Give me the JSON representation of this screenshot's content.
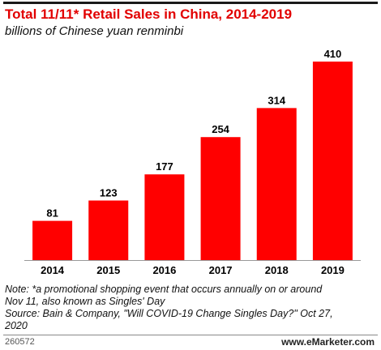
{
  "chart_data": {
    "type": "bar",
    "title": "Total 11/11* Retail Sales in China, 2014-2019",
    "subtitle": "billions of Chinese yuan renminbi",
    "categories": [
      "2014",
      "2015",
      "2016",
      "2017",
      "2018",
      "2019"
    ],
    "values": [
      81,
      123,
      177,
      254,
      314,
      410
    ],
    "ylim": [
      0,
      410
    ],
    "xlabel": "",
    "ylabel": "",
    "grid": false,
    "bar_color": "#ff0000",
    "data_labels": true
  },
  "notes": {
    "line1": "Note: *a promotional shopping event that occurs annually on or around",
    "line2": "Nov 11, also known as Singles' Day",
    "line3": "Source: Bain & Company, \"Will COVID-19 Change Singles Day?\" Oct 27,",
    "line4": "2020"
  },
  "footer": {
    "chart_id": "260572",
    "brand": "www.eMarketer.com"
  },
  "colors": {
    "title": "#e20000",
    "bar": "#ff0000",
    "axis": "#999999"
  }
}
